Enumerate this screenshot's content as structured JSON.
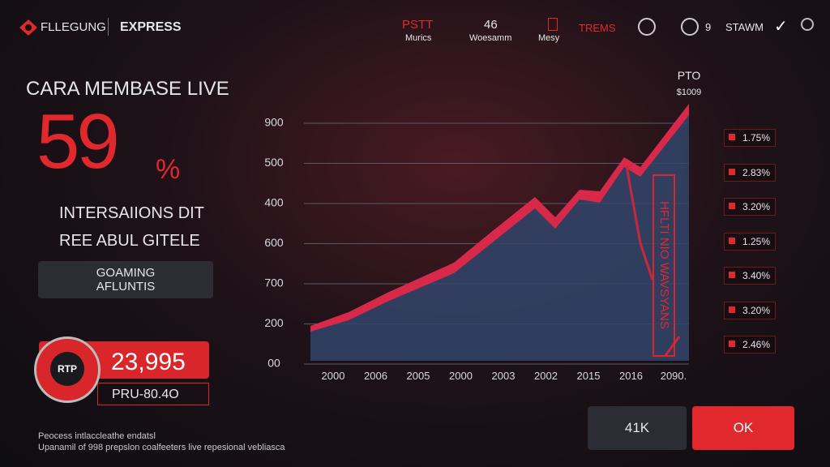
{
  "header": {
    "logo": "FLLEGUNG",
    "brand": "EXPRESS",
    "nav": [
      {
        "top": "PSTT",
        "bottom": "Murics"
      },
      {
        "top": "46",
        "bottom": "Woesamm"
      },
      {
        "bottom": "Mesy"
      }
    ],
    "trends": "TREMS",
    "count": "9",
    "user": "STAWM"
  },
  "left": {
    "title": "CARA MEMBASE LIVE",
    "big": "59",
    "unit": "%",
    "line1": "INTERSAIIONS DIT",
    "line2": "REE ABUL GITELE",
    "button": [
      "GOAMING",
      "AFLUNTIS"
    ],
    "badge": "RTP",
    "amount": "23,995",
    "sub": "PRU-80.4O"
  },
  "chart": {
    "annotation": "PTO",
    "annotation_value": "$1009",
    "y_labels": [
      "900",
      "500",
      "400",
      "600",
      "700",
      "200",
      "00"
    ],
    "x_labels": [
      "2000",
      "2006",
      "2005",
      "2000",
      "2003",
      "2002",
      "2015",
      "2016",
      "2090."
    ],
    "vertical_text": "HFLTI NIO WAVSYANS"
  },
  "right_list": [
    "1.75%",
    "2.83%",
    "3.20%",
    "1.25%",
    "3.40%",
    "3.20%",
    "2.46%"
  ],
  "footer": {
    "line1": "Peocess intlaccleathe endatsl",
    "line2": "Upanamil of 998 prepslon coalfeeters live repesional vebliasca"
  },
  "buttons": {
    "secondary": "41K",
    "primary": "OK"
  }
}
